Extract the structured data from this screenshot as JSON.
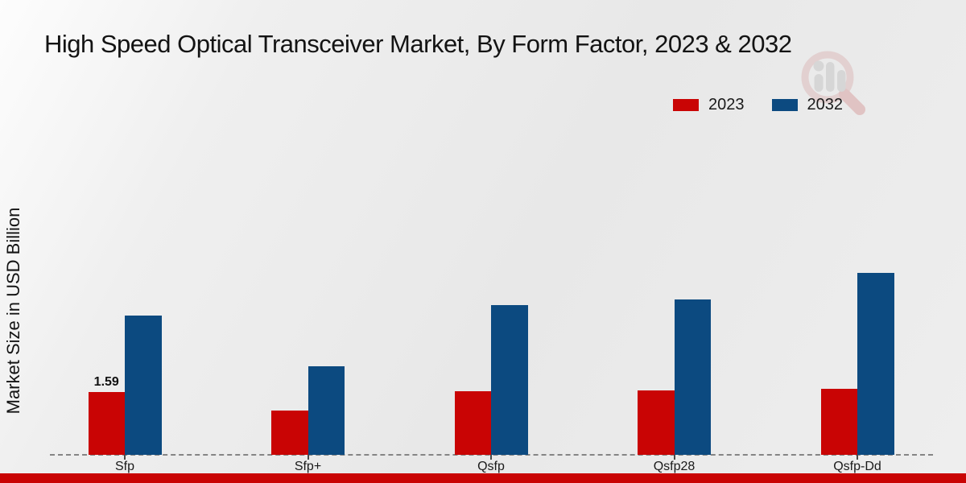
{
  "chart_data": {
    "type": "bar",
    "title": "High Speed Optical Transceiver Market, By Form Factor, 2023 & 2032",
    "ylabel": "Market Size in USD Billion",
    "xlabel": "",
    "categories": [
      "Sfp",
      "Sfp+",
      "Qsfp",
      "Qsfp28",
      "Qsfp-Dd"
    ],
    "series": [
      {
        "name": "2023",
        "color": "#c90404",
        "values": [
          1.59,
          1.12,
          1.61,
          1.63,
          1.67
        ]
      },
      {
        "name": "2032",
        "color": "#0c4a80",
        "values": [
          3.53,
          2.24,
          3.79,
          3.93,
          4.61
        ]
      }
    ],
    "value_labels": [
      {
        "category": "Sfp",
        "series": "2023",
        "text": "1.59"
      }
    ],
    "ylim": [
      0,
      5
    ],
    "grid": false,
    "legend_position": "top-right",
    "baseline_style": "dashed"
  },
  "footer_bar": {
    "color": "#c90404"
  },
  "watermark": {
    "icon": "magnifier-bar-chart-watermark"
  }
}
